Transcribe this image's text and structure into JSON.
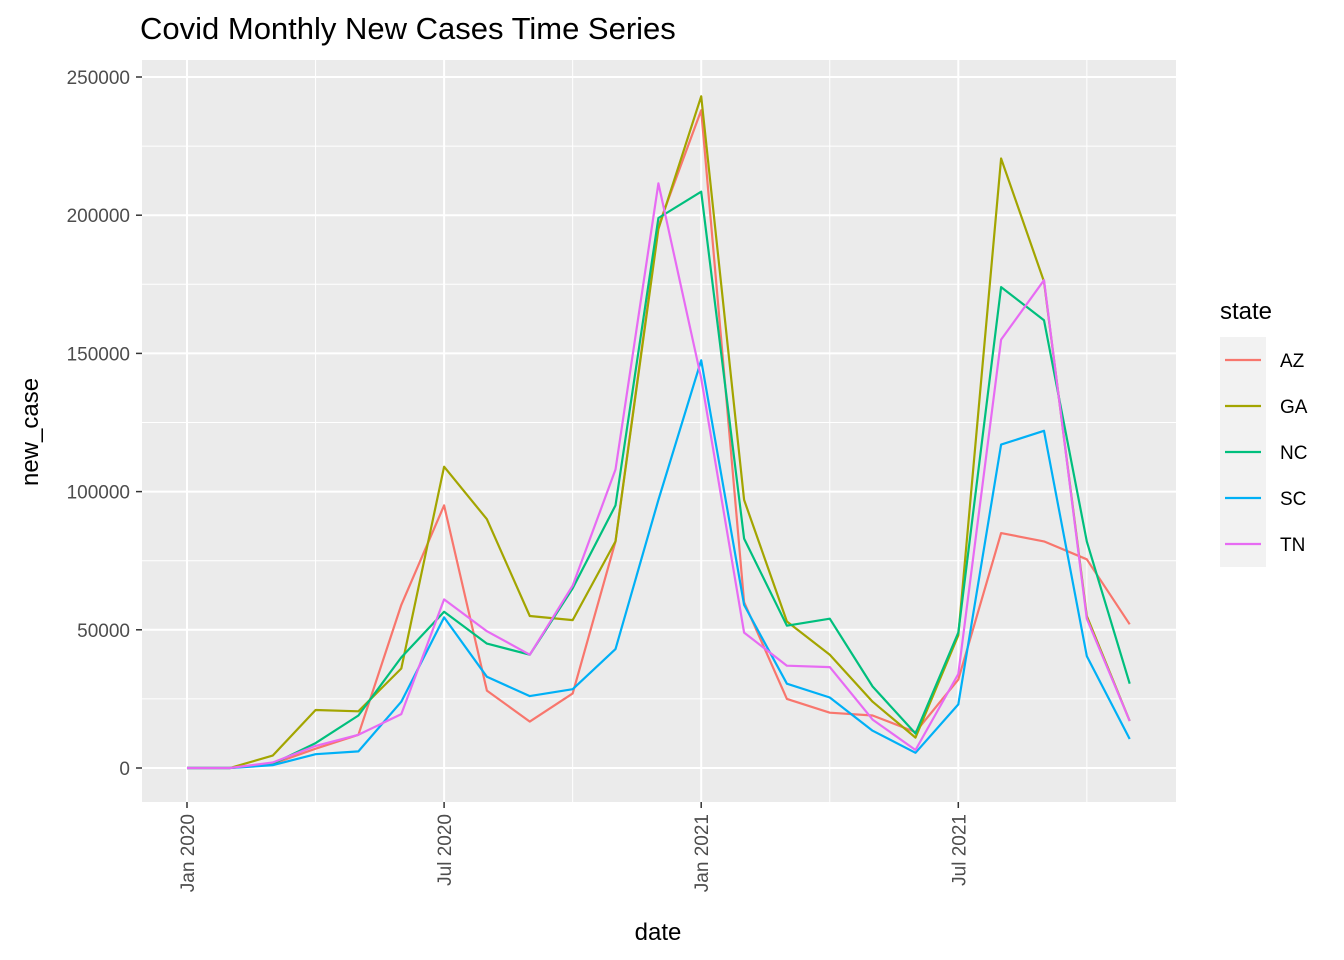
{
  "chart_data": {
    "type": "line",
    "title": "Covid Monthly New Cases Time Series",
    "xlabel": "date",
    "ylabel": "new_case",
    "ylim": [
      -12000,
      250000
    ],
    "yticks": [
      0,
      50000,
      100000,
      150000,
      200000,
      250000
    ],
    "xticks": [
      "Jan 2020",
      "Jul 2020",
      "Jan 2021",
      "Jul 2021"
    ],
    "grid": true,
    "legend_title": "state",
    "legend_position": "right",
    "x": [
      "2020-01",
      "2020-02",
      "2020-03",
      "2020-04",
      "2020-05",
      "2020-06",
      "2020-07",
      "2020-08",
      "2020-09",
      "2020-10",
      "2020-11",
      "2020-12",
      "2021-01",
      "2021-02",
      "2021-03",
      "2021-04",
      "2021-05",
      "2021-06",
      "2021-07",
      "2021-08",
      "2021-09",
      "2021-10",
      "2021-11"
    ],
    "series": [
      {
        "name": "AZ",
        "color": "#F8766D",
        "values": [
          0,
          0,
          1500,
          7000,
          12000,
          59000,
          95000,
          28000,
          16800,
          27000,
          82000,
          196000,
          238000,
          60000,
          25000,
          20000,
          19000,
          13000,
          32000,
          85000,
          82000,
          75500,
          52000
        ]
      },
      {
        "name": "GA",
        "color": "#A3A500",
        "values": [
          0,
          0,
          4500,
          21000,
          20500,
          36000,
          109000,
          90000,
          55000,
          53500,
          82000,
          195000,
          243000,
          97000,
          53000,
          41000,
          24000,
          11000,
          48000,
          220500,
          176000,
          55000,
          17000
        ]
      },
      {
        "name": "NC",
        "color": "#00BF7D",
        "values": [
          0,
          0,
          1500,
          9000,
          19000,
          40000,
          56500,
          45000,
          41000,
          65000,
          95000,
          199000,
          208500,
          83000,
          51500,
          54000,
          29500,
          12500,
          49000,
          174000,
          162000,
          82000,
          30500
        ]
      },
      {
        "name": "SC",
        "color": "#00B0F6",
        "values": [
          0,
          0,
          1000,
          5000,
          6000,
          24000,
          54500,
          33000,
          26000,
          28500,
          43000,
          97000,
          147500,
          59000,
          30500,
          25500,
          13500,
          5500,
          23000,
          117000,
          122000,
          40500,
          10500
        ]
      },
      {
        "name": "TN",
        "color": "#E76BF3",
        "values": [
          0,
          0,
          2000,
          8000,
          12000,
          19500,
          61000,
          49500,
          41000,
          66000,
          108000,
          211500,
          141000,
          49000,
          37000,
          36500,
          17500,
          6500,
          34000,
          155000,
          176500,
          54000,
          17000
        ]
      }
    ]
  }
}
